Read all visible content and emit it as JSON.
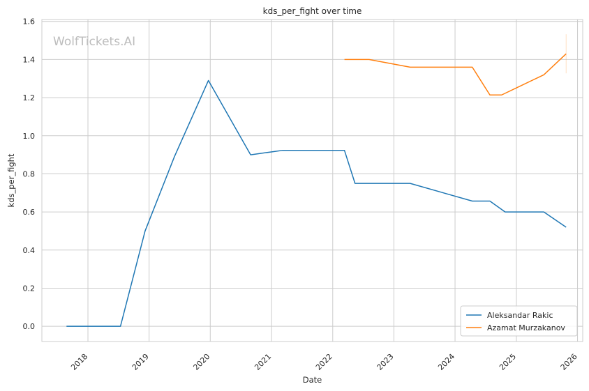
{
  "chart_data": {
    "type": "line",
    "title": "kds_per_fight over time",
    "xlabel": "Date",
    "ylabel": "kds_per_fight",
    "xlim": [
      "2017-04-01",
      "2026-02-01"
    ],
    "ylim": [
      -0.08,
      1.61
    ],
    "x_ticks": [
      "2018",
      "2019",
      "2020",
      "2021",
      "2022",
      "2023",
      "2024",
      "2025",
      "2026"
    ],
    "y_ticks": [
      "0.0",
      "0.2",
      "0.4",
      "0.6",
      "0.8",
      "1.0",
      "1.2",
      "1.4",
      "1.6"
    ],
    "grid": true,
    "legend_position": "bottom-right",
    "watermark": "WolfTickets.AI",
    "series": [
      {
        "name": "Aleksandar Rakic",
        "color": "#1f77b4",
        "points": [
          {
            "x": "2017-08-26",
            "y": 0.0
          },
          {
            "x": "2018-07-14",
            "y": 0.0
          },
          {
            "x": "2018-12-08",
            "y": 0.5
          },
          {
            "x": "2019-06-01",
            "y": 0.89
          },
          {
            "x": "2019-12-21",
            "y": 1.29
          },
          {
            "x": "2020-08-29",
            "y": 0.9
          },
          {
            "x": "2021-03-06",
            "y": 0.923
          },
          {
            "x": "2022-03-12",
            "y": 0.923
          },
          {
            "x": "2022-05-14",
            "y": 0.75
          },
          {
            "x": "2023-04-08",
            "y": 0.75
          },
          {
            "x": "2024-04-13",
            "y": 0.657
          },
          {
            "x": "2024-07-27",
            "y": 0.657
          },
          {
            "x": "2024-10-26",
            "y": 0.6
          },
          {
            "x": "2025-06-14",
            "y": 0.6
          },
          {
            "x": "2025-10-25",
            "y": 0.52
          }
        ]
      },
      {
        "name": "Azamat Murzakanov",
        "color": "#ff7f0e",
        "points": [
          {
            "x": "2022-03-12",
            "y": 1.4
          },
          {
            "x": "2022-08-06",
            "y": 1.4
          },
          {
            "x": "2023-04-08",
            "y": 1.36
          },
          {
            "x": "2024-04-13",
            "y": 1.36
          },
          {
            "x": "2024-07-27",
            "y": 1.214
          },
          {
            "x": "2024-10-05",
            "y": 1.214
          },
          {
            "x": "2025-06-14",
            "y": 1.32
          },
          {
            "x": "2025-10-25",
            "y": 1.43
          }
        ]
      }
    ]
  }
}
